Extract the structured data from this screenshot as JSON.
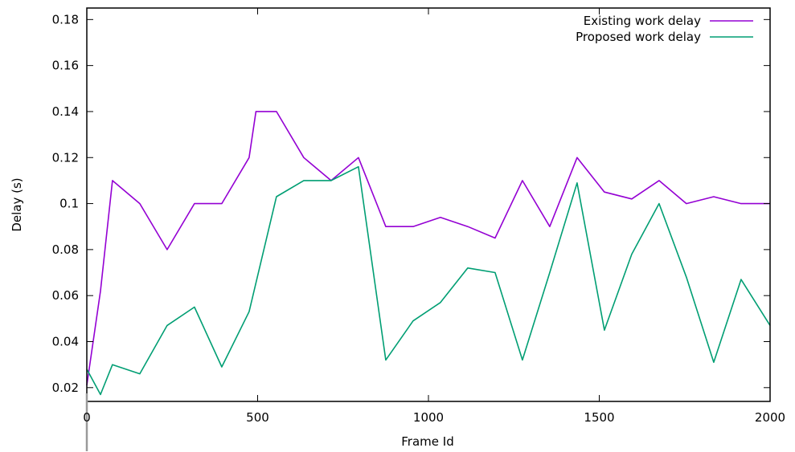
{
  "chart_data": {
    "type": "line",
    "title": "",
    "xlabel": "Frame Id",
    "ylabel": "Delay (s)",
    "xlim": [
      0,
      2000
    ],
    "ylim": [
      0.014,
      0.185
    ],
    "xticks": [
      0,
      500,
      1000,
      1500,
      2000
    ],
    "xtick_labels": [
      "0",
      "500",
      "1000",
      "1500",
      "2000"
    ],
    "yticks": [
      0.02,
      0.04,
      0.06,
      0.08,
      0.1,
      0.12,
      0.14,
      0.16,
      0.18
    ],
    "ytick_labels": [
      "0.02",
      "0.04",
      "0.06",
      "0.08",
      "0.1",
      "0.12",
      "0.14",
      "0.16",
      "0.18"
    ],
    "grid": false,
    "legend_position": "top-right",
    "series": [
      {
        "name": "Existing work delay",
        "color": "#9400d3",
        "x": [
          0,
          40,
          75,
          155,
          235,
          315,
          395,
          475,
          495,
          555,
          635,
          715,
          795,
          875,
          955,
          1035,
          1115,
          1195,
          1275,
          1355,
          1435,
          1515,
          1595,
          1675,
          1755,
          1835,
          1915,
          2000
        ],
        "y": [
          0.021,
          0.062,
          0.11,
          0.1,
          0.08,
          0.1,
          0.1,
          0.12,
          0.14,
          0.14,
          0.12,
          0.11,
          0.12,
          0.09,
          0.09,
          0.094,
          0.09,
          0.085,
          0.11,
          0.09,
          0.12,
          0.105,
          0.102,
          0.11,
          0.1,
          0.103,
          0.1,
          0.1
        ]
      },
      {
        "name": "Proposed work delay",
        "color": "#009e73",
        "x": [
          0,
          40,
          75,
          155,
          235,
          315,
          395,
          475,
          555,
          635,
          715,
          795,
          875,
          955,
          1035,
          1115,
          1195,
          1275,
          1355,
          1435,
          1515,
          1595,
          1675,
          1755,
          1835,
          1915,
          2000
        ],
        "y": [
          0.028,
          0.017,
          0.03,
          0.026,
          0.047,
          0.055,
          0.029,
          0.053,
          0.103,
          0.11,
          0.11,
          0.116,
          0.032,
          0.049,
          0.057,
          0.072,
          0.07,
          0.032,
          0.07,
          0.109,
          0.045,
          0.078,
          0.1,
          0.068,
          0.031,
          0.067,
          0.047
        ]
      }
    ]
  }
}
